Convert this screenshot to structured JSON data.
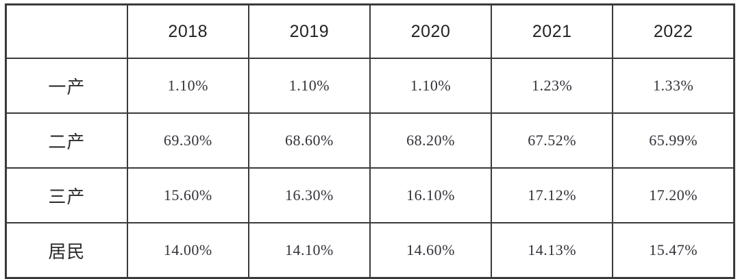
{
  "table": {
    "corner_label": "",
    "columns": [
      "2018",
      "2019",
      "2020",
      "2021",
      "2022"
    ],
    "rows": [
      {
        "label": "一产",
        "values": [
          "1.10%",
          "1.10%",
          "1.10%",
          "1.23%",
          "1.33%"
        ]
      },
      {
        "label": "二产",
        "values": [
          "69.30%",
          "68.60%",
          "68.20%",
          "67.52%",
          "65.99%"
        ]
      },
      {
        "label": "三产",
        "values": [
          "15.60%",
          "16.30%",
          "16.10%",
          "17.12%",
          "17.20%"
        ]
      },
      {
        "label": "居民",
        "values": [
          "14.00%",
          "14.10%",
          "14.60%",
          "14.13%",
          "15.47%"
        ]
      }
    ]
  },
  "colors": {
    "border": "#3a3a3a",
    "text": "#2b2b2b",
    "background": "#ffffff"
  },
  "chart_data": {
    "type": "table",
    "title": "",
    "categories": [
      "2018",
      "2019",
      "2020",
      "2021",
      "2022"
    ],
    "series": [
      {
        "name": "一产",
        "values": [
          1.1,
          1.1,
          1.1,
          1.23,
          1.33
        ]
      },
      {
        "name": "二产",
        "values": [
          69.3,
          68.6,
          68.2,
          67.52,
          65.99
        ]
      },
      {
        "name": "三产",
        "values": [
          15.6,
          16.3,
          16.1,
          17.12,
          17.2
        ]
      },
      {
        "name": "居民",
        "values": [
          14.0,
          14.1,
          14.6,
          14.13,
          15.47
        ]
      }
    ],
    "unit": "%",
    "layout": "rows are sectors (primary/secondary/tertiary industry, residents), columns are years"
  }
}
